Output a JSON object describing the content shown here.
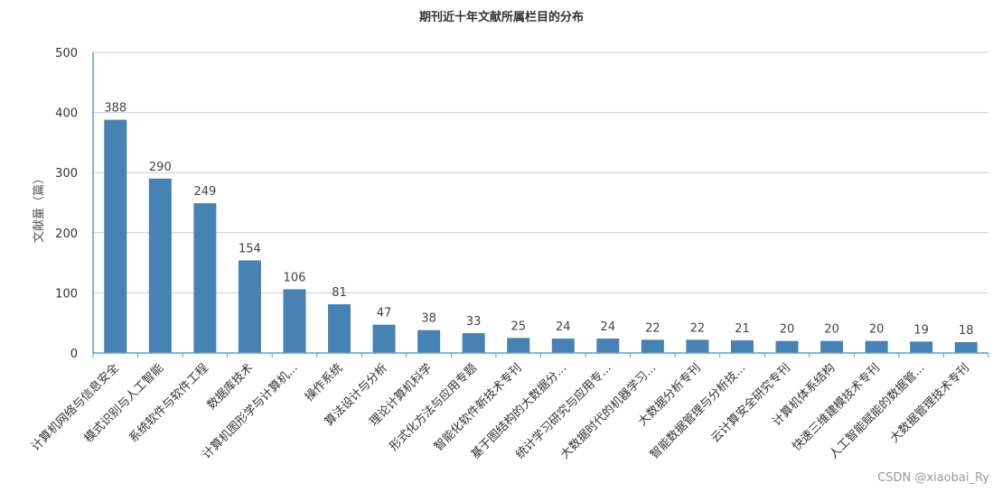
{
  "chart_data": {
    "type": "bar",
    "title": "期刊近十年文献所属栏目的分布",
    "ylabel": "文献量（篇）",
    "ylim": [
      0,
      500
    ],
    "yticks": [
      0,
      100,
      200,
      300,
      400,
      500
    ],
    "grid": true,
    "bar_color": "#4682B4",
    "categories": [
      "计算机网络与信息安全",
      "模式识别与人工智能",
      "系统软件与软件工程",
      "数据库技术",
      "计算机图形学与计算机...",
      "操作系统",
      "算法设计与分析",
      "理论计算机科学",
      "形式化方法与应用专题",
      "智能化软件新技术专刊",
      "基于图结构的大数据分...",
      "统计学习研究与应用专...",
      "大数据时代的机器学习...",
      "大数据分析专刊",
      "智能数据管理与分析技...",
      "云计算安全研究专刊",
      "计算机体系结构",
      "快速三维建模技术专刊",
      "人工智能赋能的数据管...",
      "大数据管理技术专刊"
    ],
    "values": [
      388,
      290,
      249,
      154,
      106,
      81,
      47,
      38,
      33,
      25,
      24,
      24,
      22,
      22,
      21,
      20,
      20,
      20,
      19,
      18
    ]
  },
  "watermark": "CSDN @xiaobai_Ry"
}
